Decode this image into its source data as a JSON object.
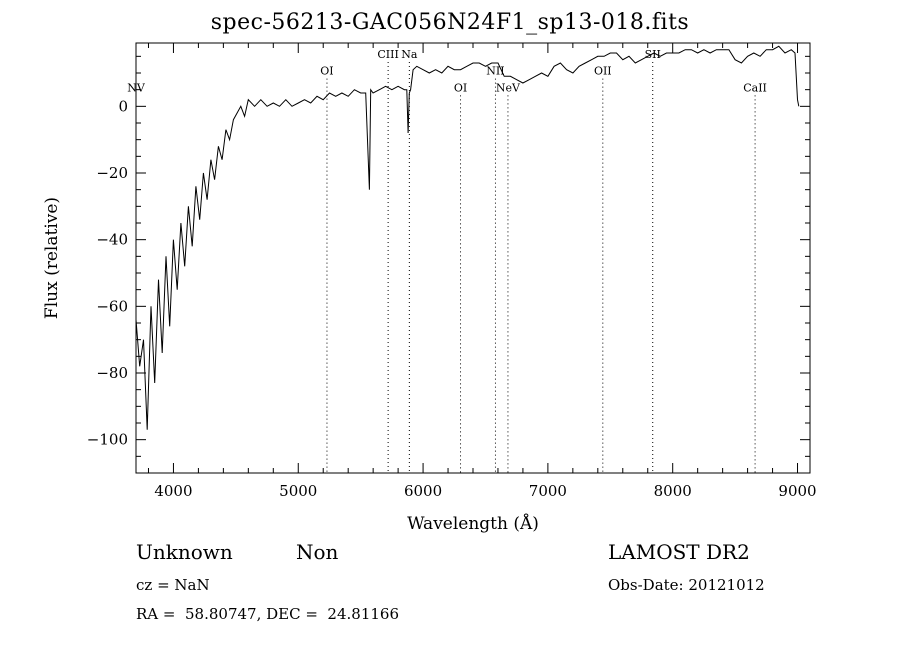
{
  "chart_data": {
    "type": "line",
    "title": "spec-56213-GAC056N24F1_sp13-018.fits",
    "xlabel": "Wavelength (Å)",
    "ylabel": "Flux (relative)",
    "xlim": [
      3700,
      9100
    ],
    "ylim": [
      -110,
      19
    ],
    "xticks": [
      4000,
      5000,
      6000,
      7000,
      8000,
      9000
    ],
    "yticks": [
      -100,
      -80,
      -60,
      -40,
      -20,
      0
    ],
    "series": [
      {
        "x": [
          3700,
          3730,
          3760,
          3790,
          3820,
          3850,
          3880,
          3910,
          3940,
          3970,
          4000,
          4030,
          4060,
          4090,
          4120,
          4150,
          4180,
          4210,
          4240,
          4270,
          4300,
          4330,
          4360,
          4390,
          4420,
          4450,
          4480,
          4510,
          4540,
          4570,
          4600,
          4650,
          4700,
          4750,
          4800,
          4850,
          4900,
          4950,
          5000,
          5050,
          5100,
          5150,
          5200,
          5250,
          5300,
          5350,
          5400,
          5450,
          5500,
          5540,
          5570,
          5580,
          5600,
          5650,
          5700,
          5750,
          5800,
          5850,
          5870,
          5880,
          5890,
          5900,
          5920,
          5950,
          6000,
          6050,
          6100,
          6150,
          6200,
          6250,
          6300,
          6350,
          6400,
          6450,
          6500,
          6550,
          6600,
          6650,
          6700,
          6750,
          6800,
          6850,
          6900,
          6950,
          7000,
          7050,
          7100,
          7150,
          7200,
          7250,
          7300,
          7350,
          7400,
          7450,
          7500,
          7550,
          7600,
          7650,
          7700,
          7750,
          7800,
          7850,
          7900,
          7950,
          8000,
          8050,
          8100,
          8150,
          8200,
          8250,
          8300,
          8350,
          8400,
          8450,
          8500,
          8550,
          8600,
          8650,
          8700,
          8750,
          8800,
          8850,
          8900,
          8950,
          8980,
          9000,
          9010
        ],
        "values": [
          -64,
          -78,
          -70,
          -97,
          -60,
          -83,
          -52,
          -74,
          -45,
          -66,
          -40,
          -55,
          -35,
          -48,
          -30,
          -42,
          -24,
          -34,
          -20,
          -28,
          -16,
          -22,
          -12,
          -16,
          -7,
          -10,
          -4,
          -2,
          0,
          -3,
          2,
          0,
          2,
          0,
          1,
          0,
          2,
          0,
          1,
          2,
          1,
          3,
          2,
          4,
          3,
          4,
          3,
          5,
          4,
          4,
          -25,
          5,
          4,
          5,
          6,
          5,
          6,
          5,
          5,
          -8,
          4,
          5,
          11,
          12,
          11,
          10,
          11,
          10,
          12,
          11,
          11,
          12,
          13,
          13,
          12,
          13,
          13,
          9,
          9,
          8,
          7,
          8,
          9,
          10,
          9,
          12,
          13,
          11,
          10,
          12,
          13,
          14,
          15,
          15,
          16,
          16,
          14,
          15,
          13,
          14,
          15,
          16,
          15,
          16,
          16,
          16,
          17,
          17,
          16,
          17,
          16,
          17,
          17,
          17,
          14,
          13,
          15,
          16,
          15,
          17,
          17,
          18,
          16,
          17,
          16,
          2,
          0
        ]
      }
    ],
    "line_labels": [
      {
        "label": "NV",
        "wavelength": 3700,
        "flux": 4.5
      },
      {
        "label": "OI",
        "wavelength": 5230,
        "flux": 9.5
      },
      {
        "label": "CIII",
        "wavelength": 5720,
        "flux": 14.5
      },
      {
        "label": "Na",
        "wavelength": 5890,
        "flux": 14.5
      },
      {
        "label": "OI",
        "wavelength": 6300,
        "flux": 4.5
      },
      {
        "label": "NII",
        "wavelength": 6580,
        "flux": 9.5
      },
      {
        "label": "NeV",
        "wavelength": 6680,
        "flux": 4.5
      },
      {
        "label": "OII",
        "wavelength": 7440,
        "flux": 9.5
      },
      {
        "label": "SII",
        "wavelength": 7840,
        "flux": 14.5
      },
      {
        "label": "CaII",
        "wavelength": 8660,
        "flux": 4.5
      }
    ],
    "grid": false
  },
  "info": {
    "class": "Unknown",
    "subclass": "Non",
    "cz": "cz = NaN",
    "coords": "RA =  58.80747, DEC =  24.81166",
    "survey": "LAMOST DR2",
    "obs_date": "Obs-Date: 20121012"
  }
}
